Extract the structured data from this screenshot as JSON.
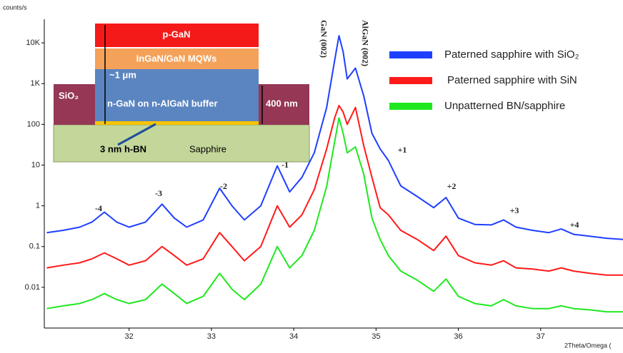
{
  "chart_data": {
    "type": "line",
    "y_label": "counts/s",
    "x_label": "2Theta/Omega (",
    "y_scale": "log",
    "legend": "upper right",
    "xlim": [
      30.97,
      38.0
    ],
    "ylim": [
      0.001,
      38000
    ],
    "xticks": [
      32,
      33,
      34,
      35,
      36,
      37
    ],
    "yticks": [
      0.01,
      0.1,
      1,
      10,
      100,
      {
        "value": 1000,
        "label": "1K"
      },
      {
        "value": 10000,
        "label": "10K"
      }
    ],
    "x": [
      31.0,
      31.2,
      31.4,
      31.55,
      31.7,
      31.85,
      32.0,
      32.2,
      32.4,
      32.55,
      32.7,
      32.9,
      33.1,
      33.25,
      33.4,
      33.6,
      33.8,
      33.95,
      34.1,
      34.25,
      34.4,
      34.5,
      34.55,
      34.6,
      34.65,
      34.75,
      34.85,
      34.95,
      35.05,
      35.15,
      35.3,
      35.5,
      35.7,
      35.85,
      36.0,
      36.2,
      36.4,
      36.55,
      36.7,
      36.9,
      37.1,
      37.25,
      37.4,
      37.6,
      37.8,
      38.0
    ],
    "series": [
      {
        "name": "Paterned sapphire with SiO₂",
        "color": "#1f3fff",
        "values": [
          0.22,
          0.25,
          0.3,
          0.4,
          0.7,
          0.4,
          0.3,
          0.4,
          1.1,
          0.5,
          0.3,
          0.45,
          2.7,
          1.0,
          0.45,
          1.0,
          9.6,
          2.2,
          5,
          20,
          260,
          4000,
          15000,
          6000,
          1300,
          2400,
          500,
          60,
          25,
          13,
          3.1,
          1.7,
          0.9,
          1.6,
          0.5,
          0.35,
          0.34,
          0.45,
          0.3,
          0.25,
          0.22,
          0.27,
          0.2,
          0.18,
          0.16,
          0.15
        ]
      },
      {
        "name": "Paterned sapphire with SiN",
        "color": "#ff1a1a",
        "values": [
          0.03,
          0.035,
          0.04,
          0.05,
          0.07,
          0.05,
          0.035,
          0.045,
          0.1,
          0.06,
          0.035,
          0.05,
          0.22,
          0.1,
          0.045,
          0.1,
          1.0,
          0.3,
          0.6,
          2.5,
          25,
          150,
          290,
          200,
          100,
          260,
          30,
          5,
          0.9,
          0.6,
          0.25,
          0.15,
          0.08,
          0.18,
          0.06,
          0.04,
          0.035,
          0.045,
          0.03,
          0.028,
          0.025,
          0.03,
          0.025,
          0.022,
          0.02,
          0.02
        ]
      },
      {
        "name": "Unpatterned BN/sapphire",
        "color": "#1fe81f",
        "values": [
          0.003,
          0.0035,
          0.004,
          0.005,
          0.007,
          0.005,
          0.004,
          0.005,
          0.012,
          0.007,
          0.004,
          0.006,
          0.022,
          0.009,
          0.005,
          0.012,
          0.1,
          0.03,
          0.06,
          0.25,
          3,
          40,
          145,
          60,
          20,
          28,
          6,
          0.5,
          0.15,
          0.06,
          0.025,
          0.015,
          0.008,
          0.016,
          0.006,
          0.004,
          0.0035,
          0.005,
          0.0035,
          0.003,
          0.003,
          0.0035,
          0.003,
          0.0028,
          0.0025,
          0.0025
        ]
      }
    ],
    "annotations": [
      "-4",
      "-3",
      "-2",
      "-1",
      "+1",
      "+2",
      "+3",
      "+4",
      "GaN (002)",
      "AlGaN (002)"
    ]
  },
  "inset": {
    "layers": [
      "p-GaN",
      "InGaN/GaN MQWs",
      "~1 μm",
      "n-GaN on  n-AlGaN buffer",
      "SiO₂",
      "400 nm",
      "3 nm h-BN",
      "Sapphire"
    ]
  }
}
